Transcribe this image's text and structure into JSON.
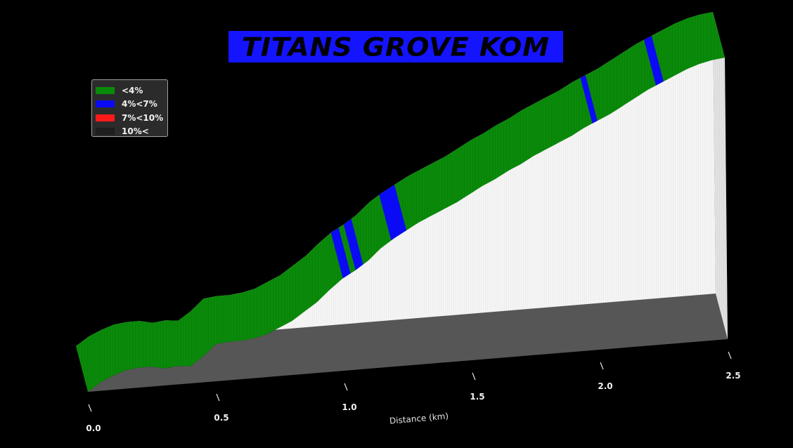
{
  "title": "TITANS GROVE KOM",
  "colors": {
    "background": "#000000",
    "title_box": "#1414ff",
    "lt4": "#0a8a0a",
    "4to7": "#0a0af5",
    "7to10": "#ff1a1a",
    "gt10": "#1e1e1e",
    "wall": "#f4f4f4"
  },
  "legend": [
    {
      "label": "<4%",
      "color": "#0a8a0a"
    },
    {
      "label": "4%<7%",
      "color": "#0a0af5"
    },
    {
      "label": "7%<10%",
      "color": "#ff1a1a"
    },
    {
      "label": "10%<",
      "color": "#1e1e1e"
    }
  ],
  "chart_data": {
    "type": "area",
    "title": "TITANS GROVE KOM",
    "xlabel": "Distance (km)",
    "ylabel": "",
    "x_ticks": [
      "0.0",
      "0.5",
      "1.0",
      "1.5",
      "2.0",
      "2.5"
    ],
    "xlim": [
      0,
      2.5
    ],
    "ylim": [
      0,
      100
    ],
    "grid": false,
    "legend_position": "upper-left",
    "series": [
      {
        "x": [
          0.0,
          0.05,
          0.1,
          0.15,
          0.2,
          0.25,
          0.3,
          0.35,
          0.4,
          0.45,
          0.5,
          0.55,
          0.6,
          0.65,
          0.7,
          0.75,
          0.8,
          0.85,
          0.9,
          0.95,
          1.0,
          1.05,
          1.1,
          1.15,
          1.2,
          1.25,
          1.3,
          1.35,
          1.4,
          1.45,
          1.5,
          1.55,
          1.6,
          1.65,
          1.7,
          1.75,
          1.8,
          1.85,
          1.9,
          1.95,
          2.0,
          2.05,
          2.1,
          2.15,
          2.2,
          2.25,
          2.3,
          2.35,
          2.4,
          2.45,
          2.5
        ],
        "values": [
          0,
          3,
          5,
          6.5,
          7,
          7,
          6,
          6.5,
          6,
          9,
          13,
          13.5,
          13.5,
          14,
          15,
          17,
          19,
          22,
          25,
          29,
          32.5,
          35,
          38,
          42,
          45,
          47.5,
          50,
          52,
          54,
          56,
          58.5,
          61,
          63,
          65.5,
          67.5,
          70,
          72,
          74,
          76,
          78.5,
          80.5,
          82.5,
          85,
          87.5,
          90,
          92,
          94,
          96,
          97.5,
          98.5,
          99
        ]
      }
    ],
    "gradient_bands": [
      {
        "x_start": 1.0,
        "x_end": 1.03,
        "category": "4%<7%"
      },
      {
        "x_start": 1.05,
        "x_end": 1.08,
        "category": "4%<7%"
      },
      {
        "x_start": 1.19,
        "x_end": 1.25,
        "category": "4%<7%"
      },
      {
        "x_start": 1.98,
        "x_end": 2.0,
        "category": "4%<7%"
      },
      {
        "x_start": 2.23,
        "x_end": 2.26,
        "category": "4%<7%"
      }
    ]
  }
}
